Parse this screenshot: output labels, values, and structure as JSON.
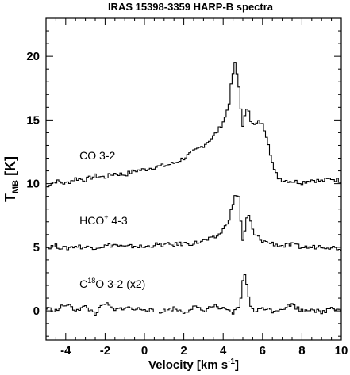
{
  "chart_data": {
    "type": "line",
    "title": "IRAS 15398-3359 HARP-B spectra",
    "xlabel": {
      "main": "Velocity [km s",
      "sup": "-1",
      "tail": "]"
    },
    "ylabel": {
      "main": "T",
      "sub": "MB",
      "tail": " [K]"
    },
    "xlim": [
      -5,
      10
    ],
    "ylim": [
      -2.3,
      23
    ],
    "xticks": [
      "-4",
      "-2",
      "0",
      "2",
      "4",
      "6",
      "8",
      "10"
    ],
    "yticks": [
      "0",
      "5",
      "10",
      "15",
      "20"
    ],
    "grid": false,
    "drawstyle": "steps-mid",
    "series": [
      {
        "name": "CO 3-2",
        "label_parts": {
          "pre": "CO 3-2",
          "sup": "",
          "post": ""
        },
        "label_at": [
          -3.3,
          11.9
        ],
        "offset": 10,
        "color": "#000000",
        "x": [
          -5,
          -4.5,
          -4,
          -3.5,
          -3,
          -2.5,
          -2,
          -1.5,
          -1,
          -0.5,
          0,
          0.5,
          1,
          1.5,
          2,
          2.5,
          3,
          3.5,
          3.8,
          4.1,
          4.3,
          4.45,
          4.6,
          4.7,
          4.8,
          4.9,
          5.0,
          5.1,
          5.25,
          5.4,
          5.55,
          5.7,
          5.85,
          6.0,
          6.15,
          6.3,
          6.45,
          6.6,
          6.8,
          7.0,
          7.5,
          8,
          8.5,
          9,
          9.5,
          10
        ],
        "y": [
          -0.2,
          0.2,
          0.0,
          0.4,
          0.3,
          0.6,
          0.5,
          0.8,
          0.7,
          1.0,
          1.1,
          1.3,
          1.4,
          1.6,
          2.0,
          2.5,
          3.0,
          3.7,
          4.3,
          5.2,
          6.4,
          8.3,
          9.4,
          8.6,
          7.6,
          6.0,
          4.4,
          5.2,
          6.3,
          5.0,
          4.5,
          4.7,
          4.9,
          4.6,
          4.1,
          3.2,
          2.0,
          1.0,
          0.5,
          0.3,
          0.2,
          0.1,
          0.3,
          0.2,
          0.4,
          0.2
        ]
      },
      {
        "name": "HCO+ 4-3",
        "label_parts": {
          "pre": "HCO",
          "sup": "+",
          "post": " 4-3"
        },
        "label_at": [
          -3.3,
          6.8
        ],
        "offset": 5,
        "color": "#000000",
        "x": [
          -5,
          -4.5,
          -4,
          -3.5,
          -3,
          -2.5,
          -2,
          -1.5,
          -1,
          -0.5,
          0,
          0.5,
          1,
          1.5,
          2,
          2.5,
          3,
          3.5,
          3.8,
          4.1,
          4.3,
          4.5,
          4.65,
          4.8,
          4.9,
          5.0,
          5.1,
          5.25,
          5.4,
          5.55,
          5.7,
          5.9,
          6.2,
          6.5,
          7.0,
          7.5,
          8,
          8.5,
          9,
          9.5,
          10
        ],
        "y": [
          0.0,
          0.1,
          -0.1,
          0.1,
          0.0,
          0.0,
          0.1,
          0.2,
          0.0,
          0.1,
          0.0,
          0.2,
          0.2,
          0.2,
          0.3,
          0.3,
          0.5,
          0.7,
          1.0,
          1.6,
          2.3,
          3.4,
          4.2,
          4.0,
          2.0,
          0.6,
          1.2,
          2.7,
          2.0,
          1.0,
          0.9,
          0.6,
          0.4,
          0.3,
          0.1,
          0.2,
          0.0,
          0.0,
          0.1,
          0.0,
          -0.1
        ]
      },
      {
        "name": "C18O 3-2 (x2)",
        "label_parts": {
          "pre": "C",
          "sup": "18",
          "post": "O 3-2 (x2)"
        },
        "label_at": [
          -3.3,
          1.8
        ],
        "offset": 0,
        "color": "#000000",
        "x": [
          -5,
          -4.5,
          -4,
          -3.5,
          -3,
          -2.5,
          -2,
          -1.5,
          -1,
          -0.5,
          0,
          0.5,
          1,
          1.5,
          2,
          2.5,
          3,
          3.5,
          4,
          4.5,
          4.8,
          4.95,
          5.05,
          5.15,
          5.3,
          5.45,
          5.7,
          6,
          6.5,
          7,
          7.5,
          8,
          8.5,
          9,
          9.5,
          10
        ],
        "y": [
          0.2,
          0.0,
          0.5,
          0.1,
          0.3,
          -0.2,
          0.6,
          0.0,
          0.3,
          0.1,
          0.2,
          -0.1,
          0.0,
          0.2,
          -0.1,
          0.3,
          0.0,
          0.4,
          0.1,
          -0.2,
          0.3,
          1.5,
          3.0,
          2.6,
          1.2,
          0.1,
          -0.1,
          0.3,
          0.0,
          0.2,
          0.5,
          0.0,
          0.2,
          -0.2,
          0.3,
          0.1
        ]
      }
    ]
  }
}
